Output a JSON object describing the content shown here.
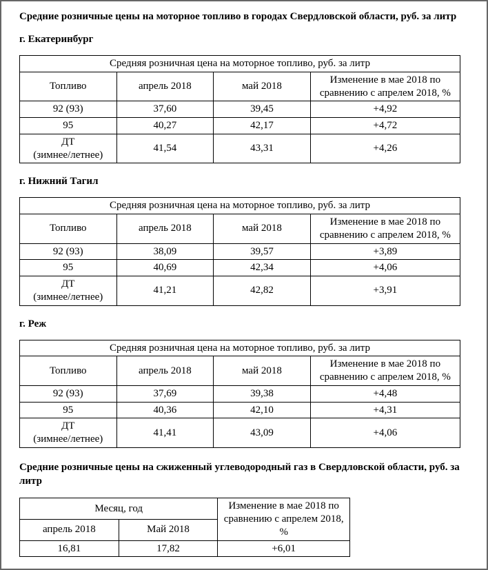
{
  "mainTitle": "Средние розничные цены на моторное топливо в городах Свердловской области, руб. за литр",
  "tableSpanHeader": "Средняя розничная цена на моторное топливо, руб. за литр",
  "columns": {
    "fuel": "Топливо",
    "april": "апрель 2018",
    "may": "май 2018",
    "change": "Изменение в мае 2018 по сравнению с апрелем 2018, %"
  },
  "cities": [
    {
      "title": "г. Екатеринбург",
      "rows": [
        {
          "fuel": "92 (93)",
          "april": "37,60",
          "may": "39,45",
          "change": "+4,92"
        },
        {
          "fuel": "95",
          "april": "40,27",
          "may": "42,17",
          "change": "+4,72"
        },
        {
          "fuel": "ДТ (зимнее/летнее)",
          "april": "41,54",
          "may": "43,31",
          "change": "+4,26"
        }
      ]
    },
    {
      "title": "г. Нижний Тагил",
      "rows": [
        {
          "fuel": "92 (93)",
          "april": "38,09",
          "may": "39,57",
          "change": "+3,89"
        },
        {
          "fuel": "95",
          "april": "40,69",
          "may": "42,34",
          "change": "+4,06"
        },
        {
          "fuel": "ДТ (зимнее/летнее)",
          "april": "41,21",
          "may": "42,82",
          "change": "+3,91"
        }
      ]
    },
    {
      "title": "г. Реж",
      "rows": [
        {
          "fuel": "92 (93)",
          "april": "37,69",
          "may": "39,38",
          "change": "+4,48"
        },
        {
          "fuel": "95",
          "april": "40,36",
          "may": "42,10",
          "change": "+4,31"
        },
        {
          "fuel": "ДТ (зимнее/летнее)",
          "april": "41,41",
          "may": "43,09",
          "change": "+4,06"
        }
      ]
    }
  ],
  "gasSection": {
    "title": "Средние розничные цены на сжиженный углеводородный газ в Свердловской области, руб. за литр",
    "spanHeader": "Месяц, год",
    "columns": {
      "april": "апрель 2018",
      "may": "Май 2018",
      "change": "Изменение в мае 2018 по сравнению с апрелем 2018, %"
    },
    "row": {
      "april": "16,81",
      "may": "17,82",
      "change": "+6,01"
    }
  }
}
